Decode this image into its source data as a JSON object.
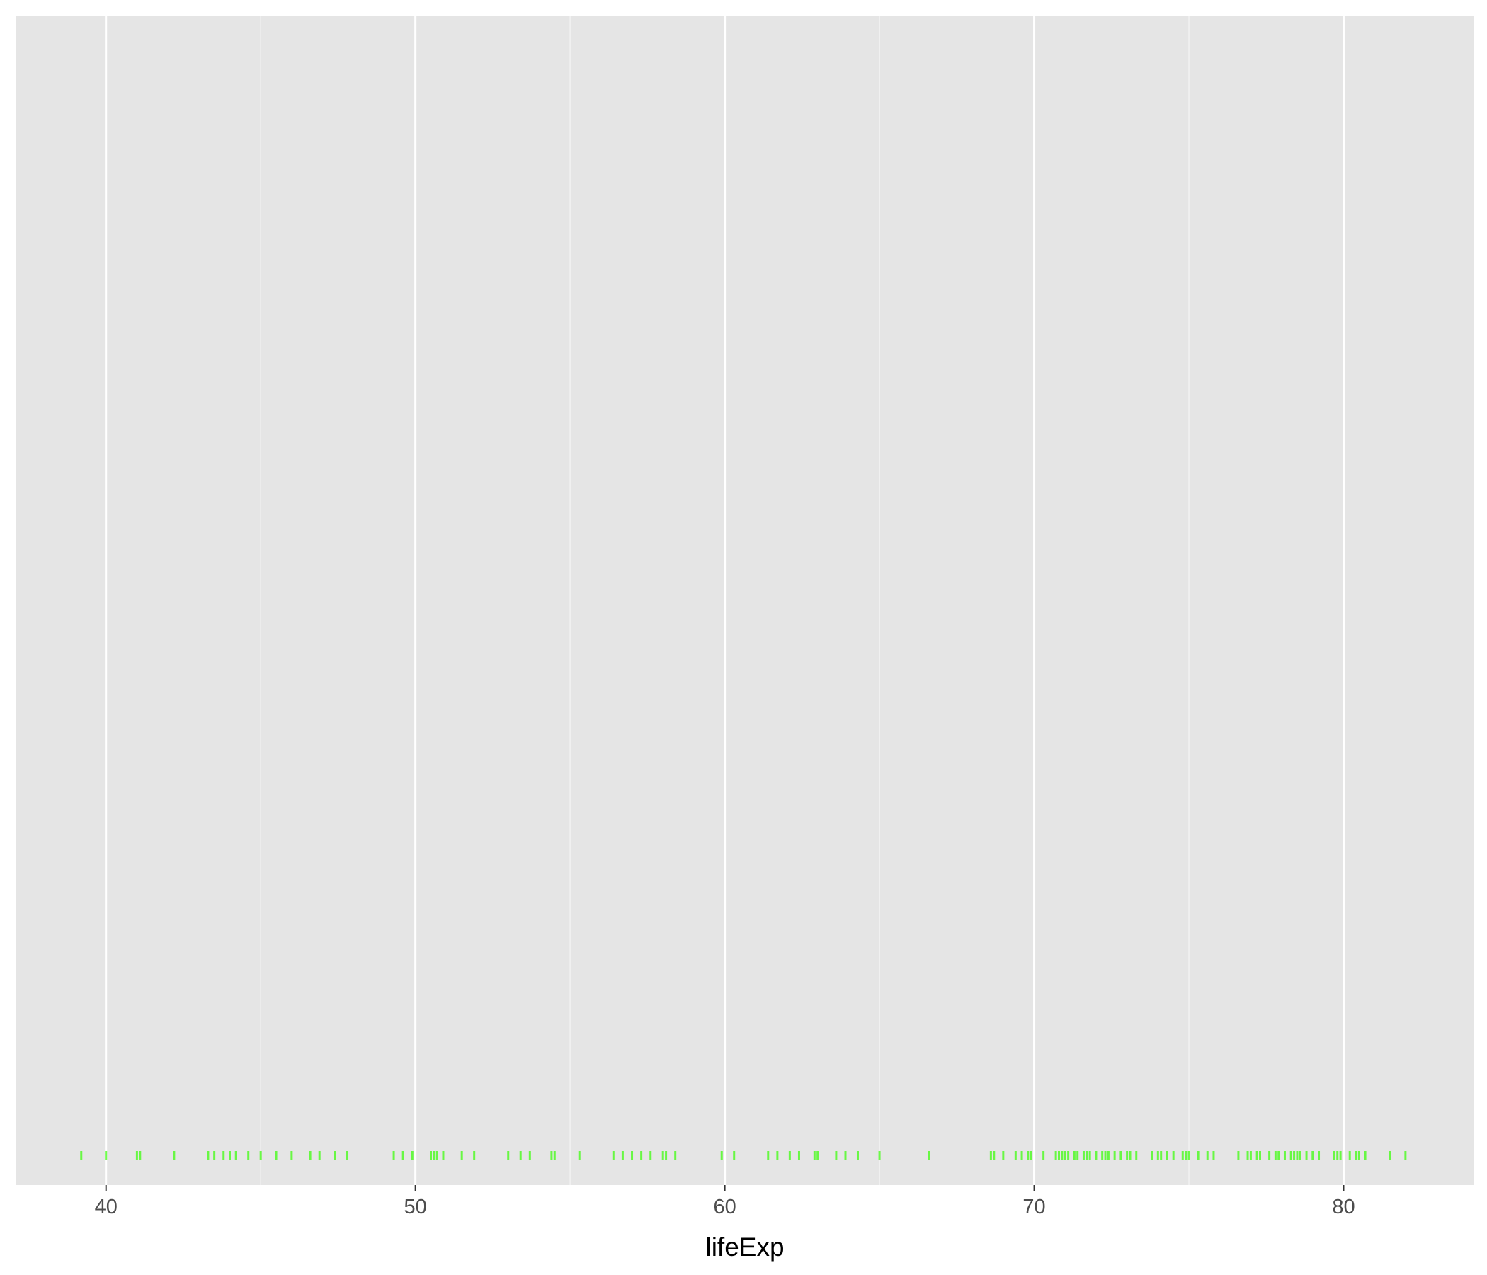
{
  "chart_data": {
    "type": "rug",
    "title": "",
    "xlabel": "lifeExp",
    "ylabel": "",
    "xlim": [
      37.1,
      84.2
    ],
    "x_ticks": [
      40,
      50,
      60,
      70,
      80
    ],
    "x_tick_labels": [
      "40",
      "50",
      "60",
      "70",
      "80"
    ],
    "grid": true,
    "legend": "none",
    "colors": {
      "panel_background": "#e5e5e5",
      "grid_major": "#ffffff",
      "grid_minor": "#f2f2f2",
      "rug": "#33ff00",
      "tick_label": "#4d4d4d",
      "axis_title": "#000000"
    },
    "series": [
      {
        "x": [
          39.2,
          40.0,
          41.0,
          41.1,
          42.2,
          43.3,
          43.5,
          43.8,
          44.0,
          44.2,
          44.6,
          45.0,
          45.5,
          46.0,
          46.6,
          46.9,
          47.4,
          47.8,
          49.3,
          49.6,
          49.9,
          50.5,
          50.6,
          50.7,
          50.9,
          51.5,
          51.9,
          53.0,
          53.4,
          53.7,
          54.4,
          54.5,
          55.3,
          56.4,
          56.7,
          57.0,
          57.3,
          57.6,
          58.0,
          58.1,
          58.4,
          59.9,
          60.3,
          61.4,
          61.7,
          62.1,
          62.4,
          62.9,
          63.0,
          63.6,
          63.9,
          64.3,
          65.0,
          66.6,
          68.6,
          68.7,
          69.0,
          69.4,
          69.6,
          69.8,
          69.9,
          70.3,
          70.7,
          70.8,
          70.9,
          71.0,
          71.1,
          71.3,
          71.4,
          71.6,
          71.7,
          71.8,
          72.0,
          72.2,
          72.3,
          72.4,
          72.6,
          72.8,
          73.0,
          73.1,
          73.3,
          73.8,
          74.0,
          74.1,
          74.3,
          74.5,
          74.8,
          74.9,
          75.0,
          75.3,
          75.6,
          75.8,
          76.6,
          76.9,
          77.0,
          77.2,
          77.3,
          77.6,
          77.8,
          77.9,
          78.1,
          78.3,
          78.4,
          78.5,
          78.6,
          78.8,
          79.0,
          79.2,
          79.7,
          79.8,
          79.9,
          80.2,
          80.4,
          80.5,
          80.7,
          81.5,
          82.0
        ]
      }
    ]
  }
}
